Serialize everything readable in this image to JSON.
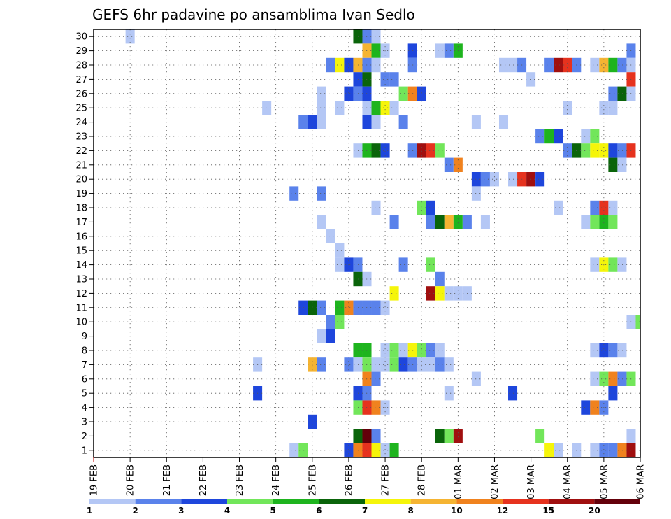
{
  "chart_data": {
    "type": "heatmap",
    "title": "GEFS 6hr padavine po ansamblima Ivan Sedlo",
    "xlabel": "",
    "ylabel": "",
    "x_ticks": [
      "19 FEB",
      "20 FEB",
      "21 FEB",
      "22 FEB",
      "23 FEB",
      "24 FEB",
      "25 FEB",
      "26 FEB",
      "27 FEB",
      "28 FEB",
      "01 MAR",
      "02 MAR",
      "03 MAR",
      "04 MAR",
      "05 MAR",
      "06 MAR"
    ],
    "y_ticks": [
      1,
      2,
      3,
      4,
      5,
      6,
      7,
      8,
      9,
      10,
      11,
      12,
      13,
      14,
      15,
      16,
      17,
      18,
      19,
      20,
      21,
      22,
      23,
      24,
      25,
      26,
      27,
      28,
      29,
      30
    ],
    "xlim_steps": [
      0,
      60
    ],
    "ylim": [
      0.5,
      30.5
    ],
    "steps_per_day": 4,
    "grid": true,
    "legend": {
      "placement": "bottom",
      "labels": [
        "1",
        "2",
        "3",
        "4",
        "5",
        "6",
        "7",
        "8",
        "10",
        "12",
        "15",
        "20"
      ],
      "colors": [
        "#b4c7f5",
        "#5a82eb",
        "#1e46dc",
        "#72e65a",
        "#1eb41e",
        "#0a640a",
        "#f5f50a",
        "#f5b432",
        "#f0821e",
        "#e6321e",
        "#a00f0f",
        "#64000a"
      ]
    },
    "cells": [
      [
        4,
        30,
        1
      ],
      [
        29,
        30,
        6
      ],
      [
        30,
        30,
        2
      ],
      [
        31,
        30,
        1
      ],
      [
        30,
        29,
        8
      ],
      [
        31,
        29,
        5
      ],
      [
        32,
        29,
        1
      ],
      [
        35,
        29,
        3
      ],
      [
        38,
        29,
        1
      ],
      [
        39,
        29,
        2
      ],
      [
        40,
        29,
        5
      ],
      [
        59,
        29,
        2
      ],
      [
        26,
        28,
        2
      ],
      [
        27,
        28,
        7
      ],
      [
        28,
        28,
        3
      ],
      [
        29,
        28,
        8
      ],
      [
        30,
        28,
        2
      ],
      [
        31,
        28,
        1
      ],
      [
        35,
        28,
        2
      ],
      [
        45,
        28,
        1
      ],
      [
        46,
        28,
        1
      ],
      [
        47,
        28,
        2
      ],
      [
        50,
        28,
        2
      ],
      [
        51,
        28,
        11
      ],
      [
        52,
        28,
        10
      ],
      [
        53,
        28,
        2
      ],
      [
        55,
        28,
        1
      ],
      [
        56,
        28,
        8
      ],
      [
        57,
        28,
        5
      ],
      [
        58,
        28,
        2
      ],
      [
        59,
        28,
        1
      ],
      [
        29,
        27,
        3
      ],
      [
        30,
        27,
        6
      ],
      [
        32,
        27,
        2
      ],
      [
        33,
        27,
        2
      ],
      [
        48,
        27,
        1
      ],
      [
        59,
        27,
        10
      ],
      [
        25,
        26,
        1
      ],
      [
        28,
        26,
        3
      ],
      [
        29,
        26,
        2
      ],
      [
        30,
        26,
        3
      ],
      [
        34,
        26,
        4
      ],
      [
        35,
        26,
        9
      ],
      [
        36,
        26,
        3
      ],
      [
        57,
        26,
        2
      ],
      [
        58,
        26,
        6
      ],
      [
        59,
        26,
        1
      ],
      [
        19,
        25,
        1
      ],
      [
        25,
        25,
        1
      ],
      [
        27,
        25,
        1
      ],
      [
        30,
        25,
        1
      ],
      [
        31,
        25,
        5
      ],
      [
        32,
        25,
        7
      ],
      [
        33,
        25,
        1
      ],
      [
        52,
        25,
        1
      ],
      [
        56,
        25,
        1
      ],
      [
        57,
        25,
        1
      ],
      [
        23,
        24,
        2
      ],
      [
        24,
        24,
        3
      ],
      [
        25,
        24,
        1
      ],
      [
        30,
        24,
        3
      ],
      [
        31,
        24,
        1
      ],
      [
        34,
        24,
        2
      ],
      [
        42,
        24,
        1
      ],
      [
        45,
        24,
        1
      ],
      [
        49,
        23,
        2
      ],
      [
        50,
        23,
        5
      ],
      [
        51,
        23,
        3
      ],
      [
        54,
        23,
        1
      ],
      [
        55,
        23,
        4
      ],
      [
        29,
        22,
        1
      ],
      [
        30,
        22,
        5
      ],
      [
        31,
        22,
        6
      ],
      [
        32,
        22,
        3
      ],
      [
        35,
        22,
        2
      ],
      [
        36,
        22,
        11
      ],
      [
        37,
        22,
        10
      ],
      [
        38,
        22,
        4
      ],
      [
        52,
        22,
        2
      ],
      [
        53,
        22,
        6
      ],
      [
        54,
        22,
        4
      ],
      [
        55,
        22,
        7
      ],
      [
        56,
        22,
        7
      ],
      [
        57,
        22,
        3
      ],
      [
        58,
        22,
        2
      ],
      [
        59,
        22,
        10
      ],
      [
        39,
        21,
        2
      ],
      [
        40,
        21,
        9
      ],
      [
        57,
        21,
        6
      ],
      [
        58,
        21,
        1
      ],
      [
        42,
        20,
        3
      ],
      [
        43,
        20,
        2
      ],
      [
        44,
        20,
        1
      ],
      [
        46,
        20,
        1
      ],
      [
        47,
        20,
        10
      ],
      [
        48,
        20,
        11
      ],
      [
        49,
        20,
        3
      ],
      [
        22,
        19,
        2
      ],
      [
        25,
        19,
        2
      ],
      [
        42,
        19,
        1
      ],
      [
        31,
        18,
        1
      ],
      [
        36,
        18,
        4
      ],
      [
        37,
        18,
        3
      ],
      [
        51,
        18,
        1
      ],
      [
        55,
        18,
        2
      ],
      [
        56,
        18,
        10
      ],
      [
        57,
        18,
        1
      ],
      [
        25,
        17,
        1
      ],
      [
        33,
        17,
        2
      ],
      [
        37,
        17,
        2
      ],
      [
        38,
        17,
        6
      ],
      [
        39,
        17,
        8
      ],
      [
        40,
        17,
        5
      ],
      [
        41,
        17,
        2
      ],
      [
        43,
        17,
        1
      ],
      [
        54,
        17,
        1
      ],
      [
        55,
        17,
        4
      ],
      [
        56,
        17,
        5
      ],
      [
        57,
        17,
        4
      ],
      [
        26,
        16,
        1
      ],
      [
        27,
        15,
        1
      ],
      [
        27,
        14,
        1
      ],
      [
        28,
        14,
        3
      ],
      [
        29,
        14,
        2
      ],
      [
        34,
        14,
        2
      ],
      [
        37,
        14,
        4
      ],
      [
        55,
        14,
        1
      ],
      [
        56,
        14,
        7
      ],
      [
        57,
        14,
        4
      ],
      [
        58,
        14,
        1
      ],
      [
        29,
        13,
        6
      ],
      [
        30,
        13,
        1
      ],
      [
        38,
        13,
        2
      ],
      [
        33,
        12,
        7
      ],
      [
        37,
        12,
        11
      ],
      [
        38,
        12,
        7
      ],
      [
        39,
        12,
        1
      ],
      [
        40,
        12,
        1
      ],
      [
        41,
        12,
        1
      ],
      [
        23,
        11,
        3
      ],
      [
        24,
        11,
        6
      ],
      [
        25,
        11,
        2
      ],
      [
        27,
        11,
        5
      ],
      [
        28,
        11,
        9
      ],
      [
        29,
        11,
        2
      ],
      [
        30,
        11,
        2
      ],
      [
        31,
        11,
        2
      ],
      [
        32,
        11,
        1
      ],
      [
        26,
        10,
        2
      ],
      [
        27,
        10,
        4
      ],
      [
        59,
        10,
        1
      ],
      [
        60,
        10,
        4
      ],
      [
        25,
        9,
        1
      ],
      [
        26,
        9,
        3
      ],
      [
        29,
        8,
        5
      ],
      [
        30,
        8,
        5
      ],
      [
        32,
        8,
        1
      ],
      [
        33,
        8,
        4
      ],
      [
        34,
        8,
        1
      ],
      [
        35,
        8,
        7
      ],
      [
        36,
        8,
        4
      ],
      [
        37,
        8,
        2
      ],
      [
        38,
        8,
        1
      ],
      [
        55,
        8,
        1
      ],
      [
        56,
        8,
        3
      ],
      [
        57,
        8,
        2
      ],
      [
        58,
        8,
        1
      ],
      [
        18,
        7,
        1
      ],
      [
        24,
        7,
        8
      ],
      [
        25,
        7,
        2
      ],
      [
        28,
        7,
        2
      ],
      [
        29,
        7,
        1
      ],
      [
        30,
        7,
        4
      ],
      [
        31,
        7,
        1
      ],
      [
        32,
        7,
        1
      ],
      [
        33,
        7,
        4
      ],
      [
        34,
        7,
        3
      ],
      [
        35,
        7,
        2
      ],
      [
        36,
        7,
        1
      ],
      [
        37,
        7,
        1
      ],
      [
        38,
        7,
        2
      ],
      [
        39,
        7,
        1
      ],
      [
        30,
        6,
        9
      ],
      [
        31,
        6,
        2
      ],
      [
        42,
        6,
        1
      ],
      [
        55,
        6,
        1
      ],
      [
        56,
        6,
        4
      ],
      [
        57,
        6,
        9
      ],
      [
        58,
        6,
        2
      ],
      [
        59,
        6,
        4
      ],
      [
        18,
        5,
        3
      ],
      [
        29,
        5,
        3
      ],
      [
        30,
        5,
        2
      ],
      [
        39,
        5,
        1
      ],
      [
        46,
        5,
        3
      ],
      [
        57,
        5,
        3
      ],
      [
        29,
        4,
        4
      ],
      [
        30,
        4,
        10
      ],
      [
        31,
        4,
        9
      ],
      [
        32,
        4,
        1
      ],
      [
        54,
        4,
        3
      ],
      [
        55,
        4,
        9
      ],
      [
        56,
        4,
        2
      ],
      [
        24,
        3,
        3
      ],
      [
        29,
        2,
        6
      ],
      [
        30,
        2,
        12
      ],
      [
        31,
        2,
        2
      ],
      [
        38,
        2,
        6
      ],
      [
        39,
        2,
        4
      ],
      [
        40,
        2,
        11
      ],
      [
        49,
        2,
        4
      ],
      [
        59,
        2,
        1
      ],
      [
        22,
        1,
        1
      ],
      [
        23,
        1,
        4
      ],
      [
        28,
        1,
        3
      ],
      [
        29,
        1,
        9
      ],
      [
        30,
        1,
        10
      ],
      [
        31,
        1,
        7
      ],
      [
        32,
        1,
        1
      ],
      [
        33,
        1,
        5
      ],
      [
        50,
        1,
        7
      ],
      [
        51,
        1,
        1
      ],
      [
        53,
        1,
        1
      ],
      [
        55,
        1,
        1
      ],
      [
        56,
        1,
        2
      ],
      [
        57,
        1,
        2
      ],
      [
        58,
        1,
        9
      ],
      [
        59,
        1,
        11
      ]
    ]
  }
}
